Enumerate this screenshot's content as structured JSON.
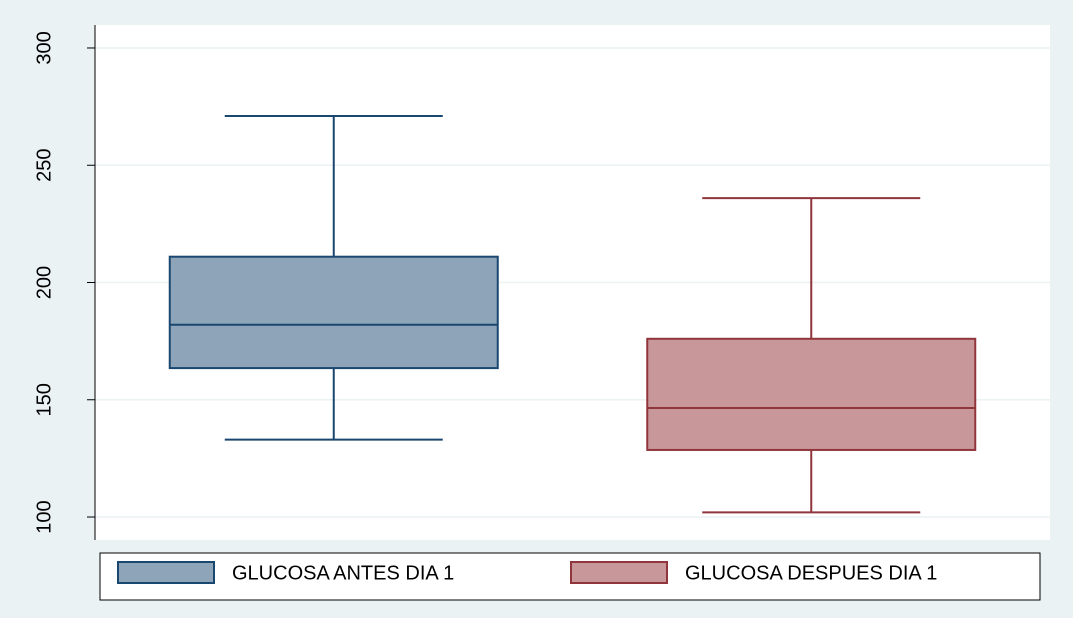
{
  "chart_data": {
    "type": "box",
    "ylim": [
      90.2,
      309.8
    ],
    "yticks": [
      100,
      150,
      200,
      250,
      300
    ],
    "grid": true,
    "legend": "bottom",
    "series": [
      {
        "name": "GLUCOSA ANTES DIA 1",
        "color": "#8ea4b9",
        "edge": "#1a476f",
        "whisker_low": 133,
        "q1": 163.5,
        "median": 182,
        "q3": 211,
        "whisker_high": 271
      },
      {
        "name": "GLUCOSA DESPUES DIA 1",
        "color": "#c8979a",
        "edge": "#90353b",
        "whisker_low": 102,
        "q1": 128.6,
        "median": 146.5,
        "q3": 176,
        "whisker_high": 236
      }
    ]
  }
}
